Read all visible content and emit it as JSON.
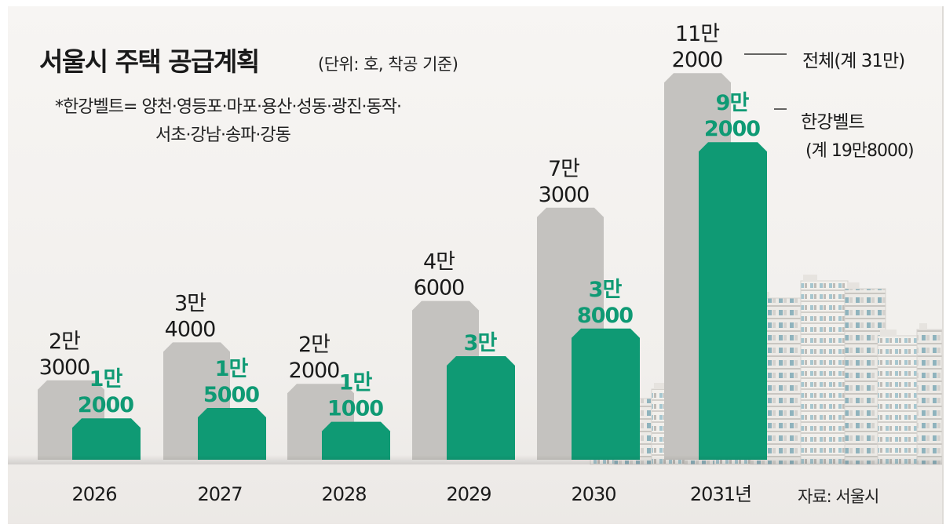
{
  "header": {
    "title": "서울시 주택 공급계획",
    "unit": "(단위: 호, 착공 기준)",
    "note_line1": "*한강벨트= 양천·영등포·마포·용산·성동·광진·동작·",
    "note_line2": "서초·강남·송파·강동"
  },
  "legend": {
    "total_label": "전체(계 31만)",
    "hangang_label": "한강벨트",
    "hangang_sum": "(계 19만8000)"
  },
  "source": "자료: 서울시",
  "colors": {
    "total_bar": "#c4c2bf",
    "hangang_bar": "#0f9a74",
    "hangang_text": "#0f9a74",
    "text": "#1a1a1a",
    "baseline": "#b9b6b2"
  },
  "chart_data": {
    "type": "bar",
    "title": "서울시 주택 공급계획",
    "ylabel": "호",
    "ylim": [
      0,
      120000
    ],
    "categories": [
      "2026",
      "2027",
      "2028",
      "2029",
      "2030",
      "2031년"
    ],
    "series": [
      {
        "name": "전체",
        "values": [
          23000,
          34000,
          22000,
          46000,
          73000,
          112000
        ],
        "labels": [
          [
            "2만",
            "3000"
          ],
          [
            "3만",
            "4000"
          ],
          [
            "2만",
            "2000"
          ],
          [
            "4만",
            "6000"
          ],
          [
            "7만",
            "3000"
          ],
          [
            "11만",
            "2000"
          ]
        ]
      },
      {
        "name": "한강벨트",
        "values": [
          12000,
          15000,
          11000,
          30000,
          38000,
          92000
        ],
        "labels": [
          [
            "1만",
            "2000"
          ],
          [
            "1만",
            "5000"
          ],
          [
            "1만",
            "1000"
          ],
          [
            "3만"
          ],
          [
            "3만",
            "8000"
          ],
          [
            "9만",
            "2000"
          ]
        ]
      }
    ]
  }
}
